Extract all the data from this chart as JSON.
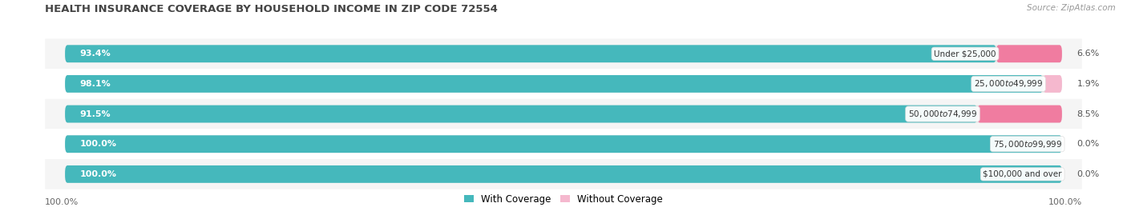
{
  "title": "HEALTH INSURANCE COVERAGE BY HOUSEHOLD INCOME IN ZIP CODE 72554",
  "source": "Source: ZipAtlas.com",
  "categories": [
    "Under $25,000",
    "$25,000 to $49,999",
    "$50,000 to $74,999",
    "$75,000 to $99,999",
    "$100,000 and over"
  ],
  "with_coverage": [
    93.4,
    98.1,
    91.5,
    100.0,
    100.0
  ],
  "without_coverage": [
    6.6,
    1.9,
    8.5,
    0.0,
    0.0
  ],
  "color_with": "#45b8bc",
  "color_without": "#f07ca0",
  "color_without_light": "#f5b8ce",
  "bar_bg": "#e8e8e8",
  "title_fontsize": 9.5,
  "label_fontsize": 8.0,
  "legend_fontsize": 8.5,
  "source_fontsize": 7.5,
  "bar_height": 0.58,
  "background_color": "#ffffff",
  "row_bg_colors": [
    "#f5f5f5",
    "#ffffff",
    "#f5f5f5",
    "#ffffff",
    "#f5f5f5"
  ]
}
